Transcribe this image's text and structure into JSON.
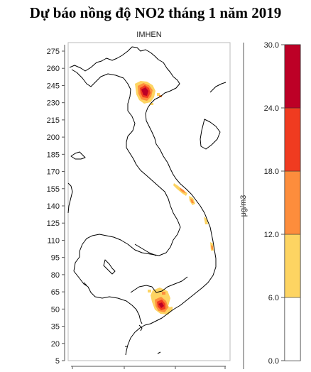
{
  "title": "Dự báo nồng độ NO2 tháng 1 năm 2019",
  "subtitle": "IMHEN",
  "y_axis": {
    "ticks": [
      "275",
      "260",
      "245",
      "230",
      "215",
      "200",
      "185",
      "170",
      "155",
      "140",
      "125",
      "110",
      "95",
      "80",
      "65",
      "50",
      "35",
      "20",
      "5"
    ]
  },
  "colorbar": {
    "unit_label": "μg/m3",
    "tick_labels": [
      "30.0",
      "24.0",
      "18.0",
      "12.0",
      "6.0",
      "0.0"
    ],
    "bins": [
      {
        "range": "0.0-6.0",
        "color": "#ffffff"
      },
      {
        "range": "6.0-12.0",
        "color": "#fdd462"
      },
      {
        "range": "12.0-18.0",
        "color": "#fd8d3c"
      },
      {
        "range": "18.0-24.0",
        "color": "#f03b20"
      },
      {
        "range": "24.0-30.0",
        "color": "#bd0026"
      }
    ]
  }
}
